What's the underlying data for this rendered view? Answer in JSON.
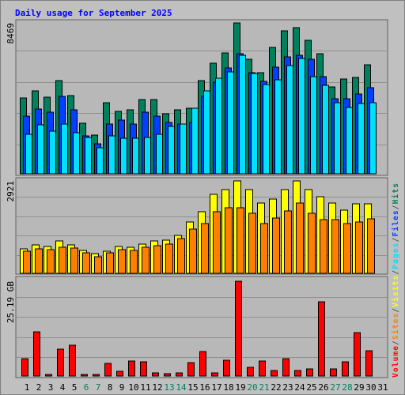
{
  "title": "Daily usage for September 2025",
  "legend_separator": "/",
  "chart_data": [
    {
      "type": "bar",
      "series": [
        {
          "name": "Hits",
          "color": "#00805C",
          "values": [
            4257,
            4656,
            4301,
            5232,
            4390,
            2838,
            2173,
            3991,
            3503,
            3592,
            4168,
            4168,
            3370,
            3592,
            3680,
            5232,
            6208,
            6784,
            8469,
            6429,
            5676,
            7094,
            8026,
            8203,
            7493,
            6740,
            4877,
            5321,
            5409,
            6119,
            null
          ]
        },
        {
          "name": "Files",
          "color": "#0040FF",
          "values": [
            3237,
            3636,
            3459,
            4345,
            3592,
            2128,
            1685,
            2793,
            3015,
            2793,
            3459,
            3237,
            2882,
            2793,
            2882,
            4345,
            5143,
            5942,
            6740,
            5676,
            5188,
            5986,
            6562,
            6651,
            6429,
            5454,
            4212,
            4212,
            4478,
            4833,
            null
          ]
        },
        {
          "name": "Pages",
          "color": "#00E0FF",
          "values": [
            2217,
            2749,
            2394,
            2793,
            2306,
            2040,
            1463,
            2128,
            1995,
            1995,
            2040,
            2217,
            2660,
            2793,
            3680,
            4656,
            5365,
            5720,
            6651,
            5631,
            5010,
            5276,
            6075,
            6474,
            5454,
            4966,
            3991,
            3725,
            3946,
            3991,
            null
          ]
        }
      ],
      "ylim": [
        0,
        8469
      ],
      "yticks": [
        8469
      ]
    },
    {
      "type": "bar",
      "series": [
        {
          "name": "Visits",
          "color": "#FFFF00",
          "values": [
            774,
            899,
            849,
            1024,
            899,
            724,
            624,
            699,
            849,
            824,
            924,
            1024,
            1049,
            1199,
            1623,
            1948,
            2497,
            2647,
            2921,
            2647,
            2222,
            2347,
            2647,
            2921,
            2647,
            2422,
            2222,
            1998,
            2197,
            2197,
            null
          ]
        },
        {
          "name": "Sites",
          "color": "#FF8000",
          "values": [
            699,
            774,
            749,
            824,
            799,
            649,
            524,
            649,
            749,
            724,
            824,
            874,
            924,
            1099,
            1398,
            1573,
            1948,
            2073,
            2073,
            1898,
            1573,
            1748,
            1973,
            2222,
            1898,
            1698,
            1698,
            1573,
            1623,
            1723,
            null
          ]
        }
      ],
      "ylim": [
        0,
        2921
      ],
      "yticks": [
        2921
      ]
    },
    {
      "type": "bar",
      "series": [
        {
          "name": "Volume",
          "color": "#FF0000",
          "values": [
            4.62,
            11.75,
            0.42,
            7.14,
            8.19,
            0.42,
            0.42,
            3.36,
            1.26,
            3.99,
            3.78,
            0.84,
            0.63,
            0.84,
            3.57,
            6.51,
            0.84,
            4.2,
            25.19,
            2.31,
            3.99,
            1.47,
            4.62,
            1.47,
            1.89,
            19.73,
            1.89,
            3.78,
            11.54,
            6.72,
            null
          ]
        }
      ],
      "ylim": [
        0,
        25.19
      ],
      "yticks": [
        {
          "value": 25.19,
          "label": "25.19 GB"
        }
      ],
      "categories": [
        "1",
        "2",
        "3",
        "4",
        "5",
        "6",
        "7",
        "8",
        "9",
        "10",
        "11",
        "12",
        "13",
        "14",
        "15",
        "16",
        "17",
        "18",
        "19",
        "20",
        "21",
        "22",
        "23",
        "24",
        "25",
        "26",
        "27",
        "28",
        "29",
        "30",
        "31"
      ],
      "category_colors": [
        "#000000",
        "#000000",
        "#000000",
        "#000000",
        "#000000",
        "#00805C",
        "#00805C",
        "#000000",
        "#000000",
        "#000000",
        "#000000",
        "#000000",
        "#00805C",
        "#00805C",
        "#000000",
        "#000000",
        "#000000",
        "#000000",
        "#000000",
        "#00805C",
        "#00805C",
        "#000000",
        "#000000",
        "#000000",
        "#000000",
        "#000000",
        "#00805C",
        "#00805C",
        "#000000",
        "#000000",
        "#000000"
      ]
    }
  ]
}
